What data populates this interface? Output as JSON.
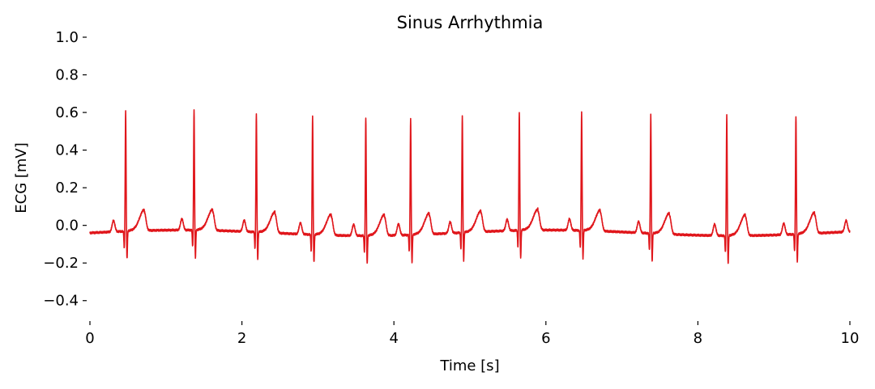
{
  "chart_data": {
    "type": "line",
    "title": "Sinus Arrhythmia",
    "xlabel": "Time [s]",
    "ylabel": "ECG [mV]",
    "xlim": [
      0,
      10
    ],
    "ylim": [
      -0.5,
      1.0
    ],
    "xticks": [
      0,
      2,
      4,
      6,
      8,
      10
    ],
    "yticks": [
      1.0,
      0.8,
      0.6,
      0.4,
      0.2,
      0.0,
      -0.2,
      -0.4
    ],
    "xtick_labels": [
      "0",
      "2",
      "4",
      "6",
      "8",
      "10"
    ],
    "ytick_labels": [
      "1.0",
      "0.8",
      "0.6",
      "0.4",
      "0.2",
      "0.0",
      "−0.2",
      "−0.4"
    ],
    "grid": false,
    "line_color": "#e0161b",
    "r_peaks": {
      "time_s": [
        0.47,
        1.37,
        2.19,
        2.93,
        3.63,
        4.22,
        4.9,
        5.65,
        6.47,
        7.38,
        8.38,
        9.29
      ],
      "amplitude_mv": [
        0.64,
        0.64,
        0.63,
        0.63,
        0.63,
        0.62,
        0.62,
        0.63,
        0.63,
        0.63,
        0.64,
        0.63
      ]
    },
    "p_wave_amplitude_mv": 0.06,
    "t_wave_amplitude_mv": 0.1,
    "s_wave_amplitude_mv": -0.15,
    "baseline_mv": -0.04
  }
}
